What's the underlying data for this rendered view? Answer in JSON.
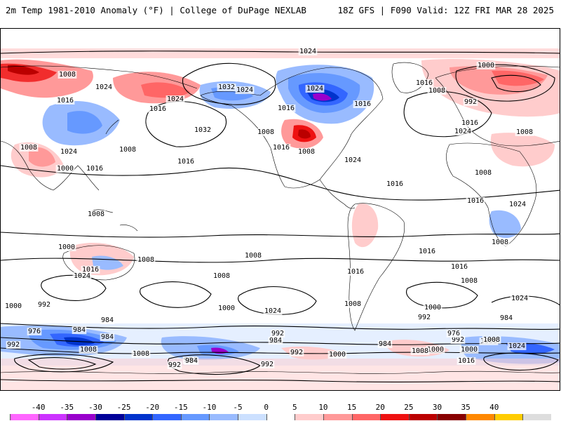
{
  "header": {
    "title": "2m Temp 1981-2010 Anomaly (°F) | College of DuPage NEXLAB",
    "run_info": "18Z GFS | F090 Valid: 12Z FRI MAR 28 2025"
  },
  "map": {
    "contour_labels": [
      {
        "text": "1024"
      },
      {
        "text": "1008"
      },
      {
        "text": "1024"
      },
      {
        "text": "1016"
      },
      {
        "text": "1016"
      },
      {
        "text": "1024"
      },
      {
        "text": "1032"
      },
      {
        "text": "1024"
      },
      {
        "text": "1032"
      },
      {
        "text": "1008"
      },
      {
        "text": "1016"
      },
      {
        "text": "1024"
      },
      {
        "text": "1016"
      },
      {
        "text": "1000"
      },
      {
        "text": "1016"
      },
      {
        "text": "1008"
      },
      {
        "text": "992"
      },
      {
        "text": "1016"
      },
      {
        "text": "1024"
      },
      {
        "text": "1016"
      },
      {
        "text": "1008"
      },
      {
        "text": "1024"
      },
      {
        "text": "1000"
      },
      {
        "text": "1016"
      },
      {
        "text": "1008"
      },
      {
        "text": "1008"
      },
      {
        "text": "1016"
      },
      {
        "text": "1008"
      },
      {
        "text": "1016"
      },
      {
        "text": "1008"
      },
      {
        "text": "1024"
      },
      {
        "text": "1016"
      },
      {
        "text": "1024"
      },
      {
        "text": "1008"
      },
      {
        "text": "1008"
      },
      {
        "text": "1000"
      },
      {
        "text": "1008"
      },
      {
        "text": "1008"
      },
      {
        "text": "1016"
      },
      {
        "text": "1016"
      },
      {
        "text": "1024"
      },
      {
        "text": "1016"
      },
      {
        "text": "1016"
      },
      {
        "text": "1008"
      },
      {
        "text": "1008"
      },
      {
        "text": "1008"
      },
      {
        "text": "1024"
      },
      {
        "text": "1000"
      },
      {
        "text": "992"
      },
      {
        "text": "984"
      },
      {
        "text": "1000"
      },
      {
        "text": "1024"
      },
      {
        "text": "1000"
      },
      {
        "text": "992"
      },
      {
        "text": "984"
      },
      {
        "text": "992"
      },
      {
        "text": "984"
      },
      {
        "text": "976"
      },
      {
        "text": "992"
      },
      {
        "text": "984"
      },
      {
        "text": "992"
      },
      {
        "text": "976"
      },
      {
        "text": "984"
      },
      {
        "text": "1008"
      },
      {
        "text": "1000"
      },
      {
        "text": "992"
      },
      {
        "text": "1008"
      },
      {
        "text": "992"
      },
      {
        "text": "984"
      },
      {
        "text": "1000"
      },
      {
        "text": "1008"
      },
      {
        "text": "1024"
      },
      {
        "text": "1000"
      },
      {
        "text": "1016"
      },
      {
        "text": "1008"
      },
      {
        "text": "984"
      },
      {
        "text": "992"
      },
      {
        "text": "984"
      },
      {
        "text": "1008"
      }
    ]
  },
  "colorbar": {
    "ticks": [
      "-40",
      "-35",
      "-30",
      "-25",
      "-20",
      "-15",
      "-10",
      "-5",
      "0",
      "5",
      "10",
      "15",
      "20",
      "25",
      "30",
      "35",
      "40"
    ],
    "colors": [
      "#ff66ff",
      "#cc33ff",
      "#9900cc",
      "#000099",
      "#0033cc",
      "#3366ff",
      "#6699ff",
      "#99bbff",
      "#cce0ff",
      "#ffffff",
      "#ffcccc",
      "#ff9999",
      "#ff6666",
      "#ee1111",
      "#bb0000",
      "#880000",
      "#ff8800",
      "#ffcc00",
      "#dddddd"
    ]
  }
}
